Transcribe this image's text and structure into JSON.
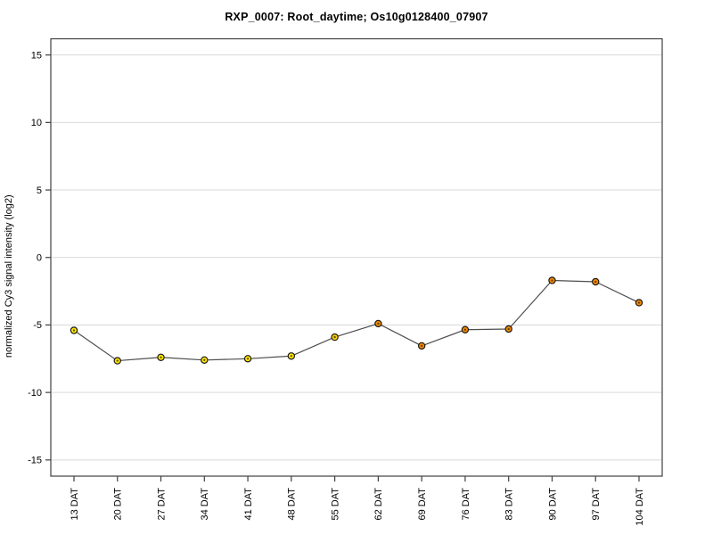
{
  "chart_data": {
    "type": "line",
    "title": "RXP_0007: Root_daytime; Os10g0128400_07907",
    "xlabel": "",
    "ylabel": "normalized Cy3 signal intensity (log2)",
    "categories": [
      "13 DAT",
      "20 DAT",
      "27 DAT",
      "34 DAT",
      "41 DAT",
      "48 DAT",
      "55 DAT",
      "62 DAT",
      "69 DAT",
      "76 DAT",
      "83 DAT",
      "90 DAT",
      "97 DAT",
      "104 DAT"
    ],
    "series": [
      {
        "name": "normalized Cy3 signal intensity (log2)",
        "values": [
          -5.4,
          -7.65,
          -7.4,
          -7.6,
          -7.5,
          -7.3,
          -5.9,
          -4.9,
          -6.55,
          -5.35,
          -5.3,
          -1.7,
          -1.8,
          -3.35
        ]
      }
    ],
    "point_colors": [
      "#ffe600",
      "#ffe600",
      "#ffe600",
      "#ffe600",
      "#ffe600",
      "#ffe600",
      "#ffd300",
      "#f28900",
      "#f28900",
      "#f28900",
      "#f28900",
      "#f28900",
      "#f28900",
      "#f28900"
    ],
    "yticks": [
      15,
      10,
      5,
      0,
      -5,
      -10,
      -15
    ],
    "ylim": [
      -16.2,
      16.2
    ],
    "grid": true,
    "legend": "none",
    "colors": {
      "line": "#4d4d4d",
      "marker_border": "#1a1a1a",
      "marker_center": "#4a3200",
      "grid": "#d9d9d9",
      "axis": "#3f3f3f",
      "background": "#ffffff",
      "title": "#000000"
    }
  }
}
